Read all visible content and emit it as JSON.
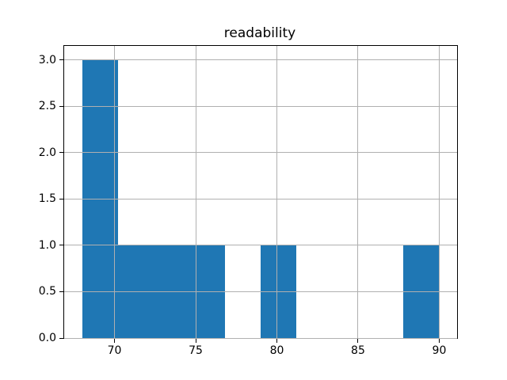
{
  "chart_data": {
    "type": "histogram",
    "title": "readability",
    "xlabel": "",
    "ylabel": "",
    "bin_edges": [
      68.0,
      70.2,
      72.4,
      74.6,
      76.8,
      79.0,
      81.2,
      83.4,
      85.6,
      87.8,
      90.0
    ],
    "counts": [
      3,
      1,
      1,
      1,
      0,
      1,
      0,
      0,
      0,
      1
    ],
    "xlim": [
      66.9,
      91.1
    ],
    "ylim": [
      0,
      3.15
    ],
    "xticks": [
      {
        "value": 70,
        "label": "70"
      },
      {
        "value": 75,
        "label": "75"
      },
      {
        "value": 80,
        "label": "80"
      },
      {
        "value": 85,
        "label": "85"
      },
      {
        "value": 90,
        "label": "90"
      }
    ],
    "yticks": [
      {
        "value": 0.0,
        "label": "0.0"
      },
      {
        "value": 0.5,
        "label": "0.5"
      },
      {
        "value": 1.0,
        "label": "1.0"
      },
      {
        "value": 1.5,
        "label": "1.5"
      },
      {
        "value": 2.0,
        "label": "2.0"
      },
      {
        "value": 2.5,
        "label": "2.5"
      },
      {
        "value": 3.0,
        "label": "3.0"
      }
    ],
    "grid": true,
    "colors": {
      "bar": "#1f77b4",
      "grid": "#b0b0b0",
      "spine": "#000000",
      "background": "#ffffff"
    }
  }
}
